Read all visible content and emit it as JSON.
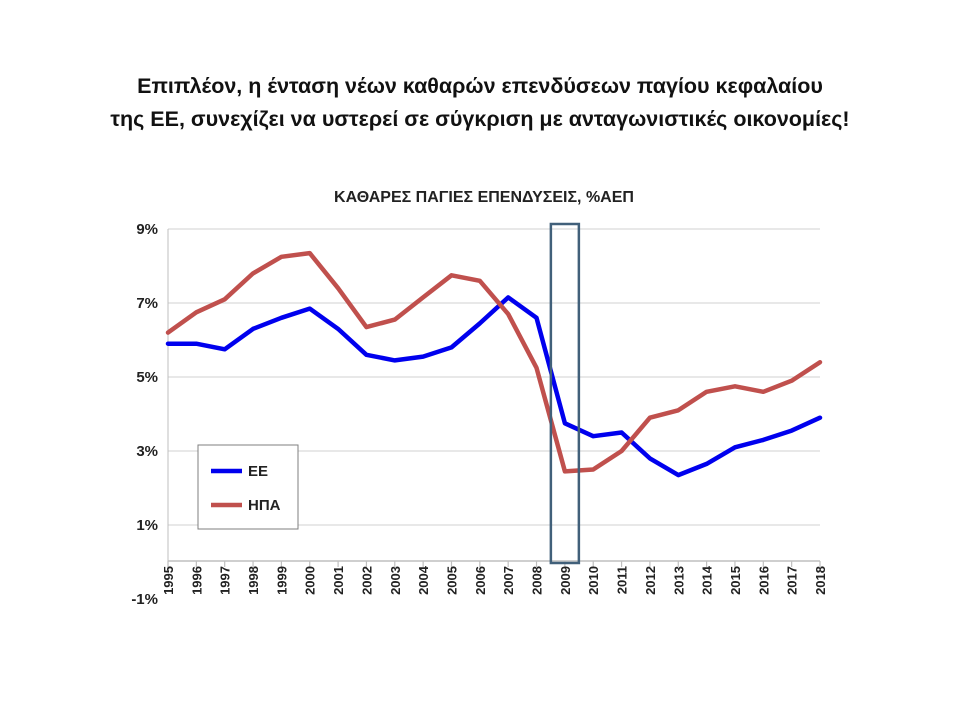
{
  "slide": {
    "title_line1": "Επιπλέον, η ένταση νέων καθαρών επενδύσεων παγίου κεφαλαίου",
    "title_line2": "της ΕΕ, συνεχίζει να υστερεί σε σύγκριση με ανταγωνιστικές οικονομίες!"
  },
  "chart_data": {
    "type": "line",
    "title": "ΚΑΘΑΡΕΣ ΠΑΓΙΕΣ ΕΠΕΝΔΥΣΕΙΣ, %ΑΕΠ",
    "xlabel": "",
    "ylabel": "",
    "ylim": [
      -1,
      9
    ],
    "yticks": [
      -1,
      1,
      3,
      5,
      7,
      9
    ],
    "ytick_labels": [
      "-1%",
      "1%",
      "3%",
      "5%",
      "7%",
      "9%"
    ],
    "grid": true,
    "legend_position": "lower-left",
    "categories": [
      "1995",
      "1996",
      "1997",
      "1998",
      "1999",
      "2000",
      "2001",
      "2002",
      "2003",
      "2004",
      "2005",
      "2006",
      "2007",
      "2008",
      "2009",
      "2010",
      "2011",
      "2012",
      "2013",
      "2014",
      "2015",
      "2016",
      "2017",
      "2018"
    ],
    "series": [
      {
        "name": "ΕΕ",
        "color": "#0000ee",
        "values": [
          5.9,
          5.9,
          5.75,
          6.3,
          6.6,
          6.85,
          6.3,
          5.6,
          5.45,
          5.55,
          5.8,
          6.45,
          7.15,
          6.6,
          3.75,
          3.4,
          3.5,
          2.8,
          2.35,
          2.65,
          3.1,
          3.3,
          3.55,
          3.9
        ]
      },
      {
        "name": "ΗΠΑ",
        "color": "#c0504d",
        "values": [
          6.2,
          6.75,
          7.1,
          7.8,
          8.25,
          8.35,
          7.4,
          6.35,
          6.55,
          7.15,
          7.75,
          7.6,
          6.7,
          5.25,
          2.45,
          2.5,
          3.0,
          3.9,
          4.1,
          4.6,
          4.75,
          4.6,
          4.9,
          5.4
        ]
      }
    ],
    "highlight_category": "2009"
  }
}
